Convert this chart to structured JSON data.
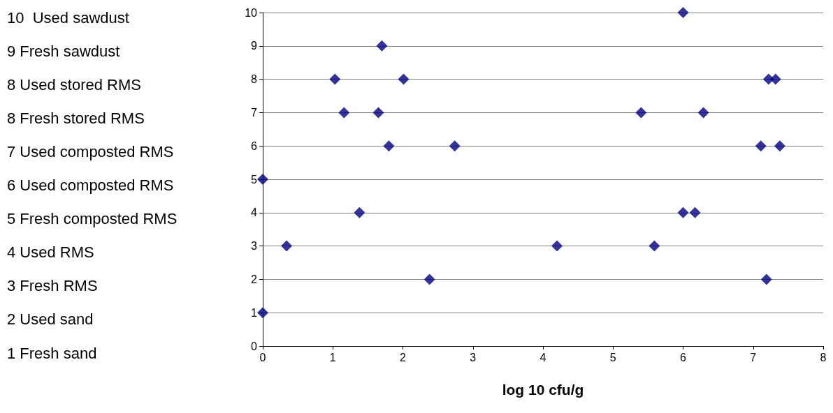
{
  "chart_data": {
    "type": "scatter",
    "xlabel": "log 10 cfu/g",
    "annotations": [
      "10  Used sawdust",
      "9 Fresh sawdust",
      "8 Used stored RMS",
      "8 Fresh stored RMS",
      "7 Used composted RMS",
      "6 Used composted RMS",
      "5 Fresh composted RMS",
      "4 Used RMS",
      "3 Fresh RMS",
      "2 Used sand",
      "1 Fresh sand"
    ],
    "series": [
      {
        "color": "#000080",
        "x": [
          6.0,
          1.7,
          1.03,
          2.01,
          7.22,
          7.32,
          1.16,
          1.65,
          5.4,
          6.29,
          1.8,
          2.74,
          7.11,
          7.38,
          0,
          1.38,
          6.0,
          6.17,
          0.34,
          4.2,
          5.59,
          2.38,
          7.19,
          0
        ],
        "values": [
          10,
          9,
          8,
          8,
          8,
          8,
          7,
          7,
          7,
          7,
          6,
          6,
          6,
          6,
          5,
          4,
          4,
          4,
          3,
          3,
          3,
          2,
          2,
          1
        ]
      }
    ],
    "xlim": [
      0,
      8
    ],
    "xticks": [
      0,
      1,
      2,
      3,
      4,
      5,
      6,
      7,
      8
    ],
    "ylim": [
      0,
      10
    ],
    "yticks": [
      0,
      1,
      2,
      3,
      4,
      5,
      6,
      7,
      8,
      9,
      10
    ],
    "grid": "y",
    "marker": "diamond"
  }
}
